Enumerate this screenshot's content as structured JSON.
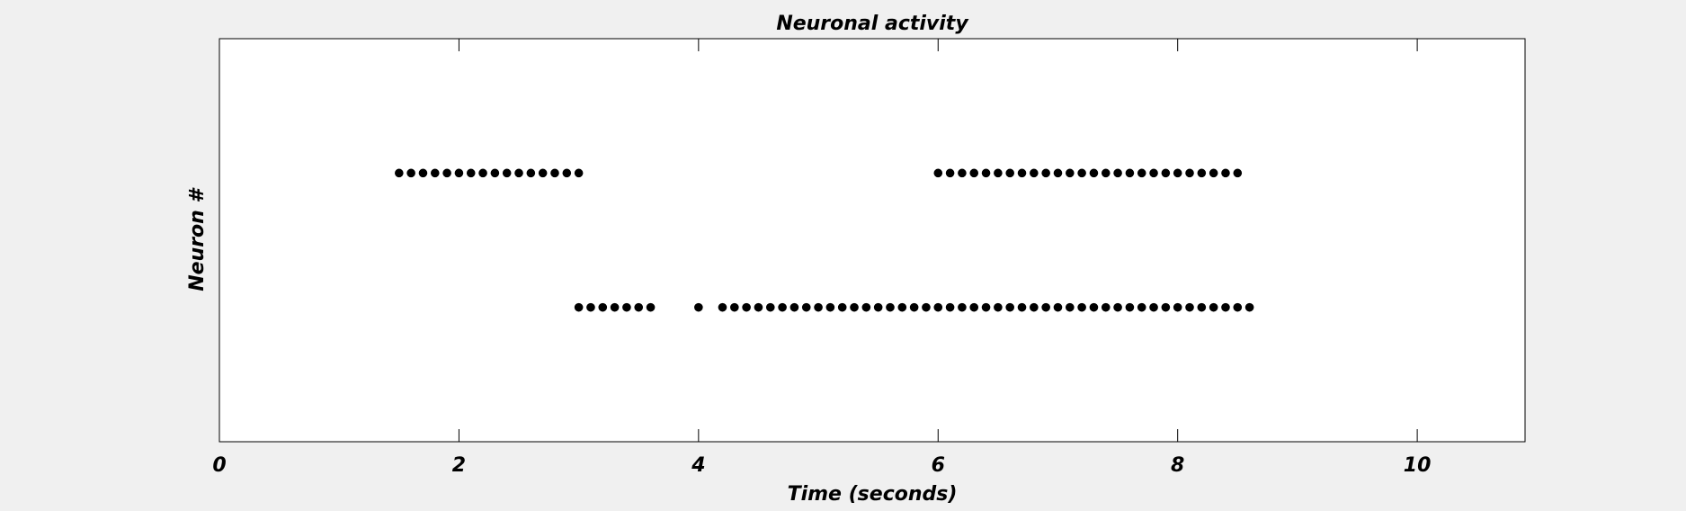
{
  "chart_data": {
    "type": "scatter",
    "title": "Neuronal activity",
    "xlabel": "Time (seconds)",
    "ylabel": "Neuron #",
    "xlim": [
      0,
      10.9
    ],
    "ylim": [
      0,
      3
    ],
    "xticks": [
      0,
      2,
      4,
      6,
      8,
      10
    ],
    "xtick_labels": [
      "0",
      "2",
      "4",
      "6",
      "8",
      "10"
    ],
    "grid": false,
    "style": "xkcd",
    "colors": {
      "marker": "#000000",
      "background": "#f0f0f0",
      "plot_area": "#ffffff"
    },
    "series": [
      {
        "neuron": 2,
        "x": [
          1.5,
          1.6,
          1.7,
          1.8,
          1.9,
          2.0,
          2.1,
          2.2,
          2.3,
          2.4,
          2.5,
          2.6,
          2.7,
          2.8,
          2.9,
          3.0,
          6.0,
          6.1,
          6.2,
          6.3,
          6.4,
          6.5,
          6.6,
          6.7,
          6.8,
          6.9,
          7.0,
          7.1,
          7.2,
          7.3,
          7.4,
          7.5,
          7.6,
          7.7,
          7.8,
          7.9,
          8.0,
          8.1,
          8.2,
          8.3,
          8.4,
          8.5
        ]
      },
      {
        "neuron": 1,
        "x": [
          3.0,
          3.1,
          3.2,
          3.3,
          3.4,
          3.5,
          3.6,
          4.0,
          4.2,
          4.3,
          4.4,
          4.5,
          4.6,
          4.7,
          4.8,
          4.9,
          5.0,
          5.1,
          5.2,
          5.3,
          5.4,
          5.5,
          5.6,
          5.7,
          5.8,
          5.9,
          6.0,
          6.1,
          6.2,
          6.3,
          6.4,
          6.5,
          6.6,
          6.7,
          6.8,
          6.9,
          7.0,
          7.1,
          7.2,
          7.3,
          7.4,
          7.5,
          7.6,
          7.7,
          7.8,
          7.9,
          8.0,
          8.1,
          8.2,
          8.3,
          8.4,
          8.5,
          8.6
        ]
      }
    ]
  }
}
